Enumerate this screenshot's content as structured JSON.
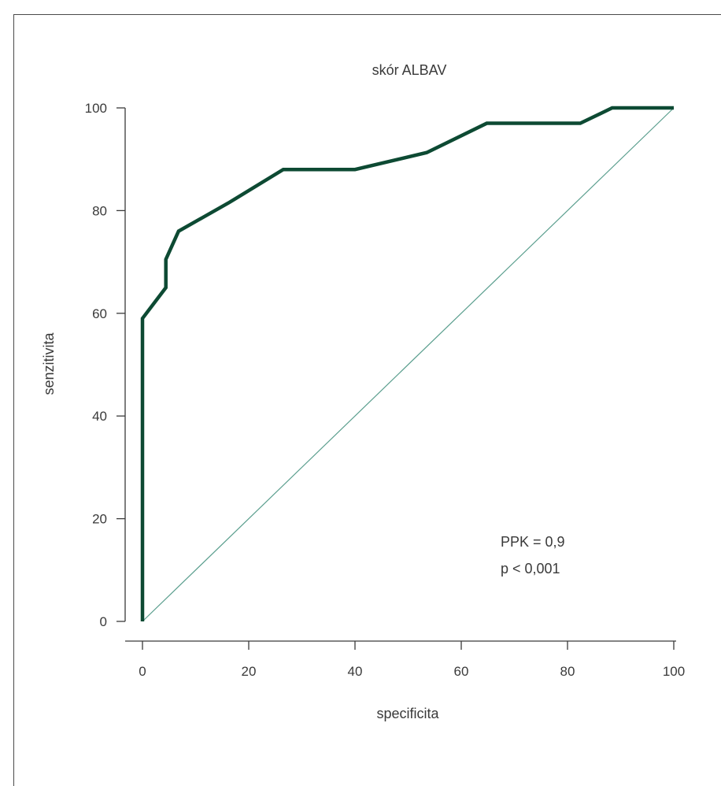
{
  "chart_data": {
    "type": "line",
    "title": "skór ALBAV",
    "xlabel": "specificita",
    "ylabel": "senzitivita",
    "xlim": [
      0,
      100
    ],
    "ylim": [
      0,
      100
    ],
    "x_ticks": [
      0,
      20,
      40,
      60,
      80,
      100
    ],
    "y_ticks": [
      0,
      20,
      40,
      60,
      80,
      100
    ],
    "grid": false,
    "series": [
      {
        "role": "roc-curve",
        "color": "#0d4a33",
        "x": [
          0,
          0,
          4.4,
          4.4,
          6.8,
          16.2,
          26.5,
          40,
          53.5,
          64.8,
          82.4,
          88.4,
          100
        ],
        "y": [
          0,
          59,
          65,
          70.5,
          76,
          81.5,
          88,
          88,
          91.3,
          97,
          97,
          100,
          100
        ]
      },
      {
        "role": "reference-diagonal",
        "color": "#5a9e8e",
        "x": [
          0,
          100
        ],
        "y": [
          0,
          100
        ]
      }
    ],
    "annotations": [
      "PPK = 0,9",
      "p < 0,001"
    ]
  }
}
